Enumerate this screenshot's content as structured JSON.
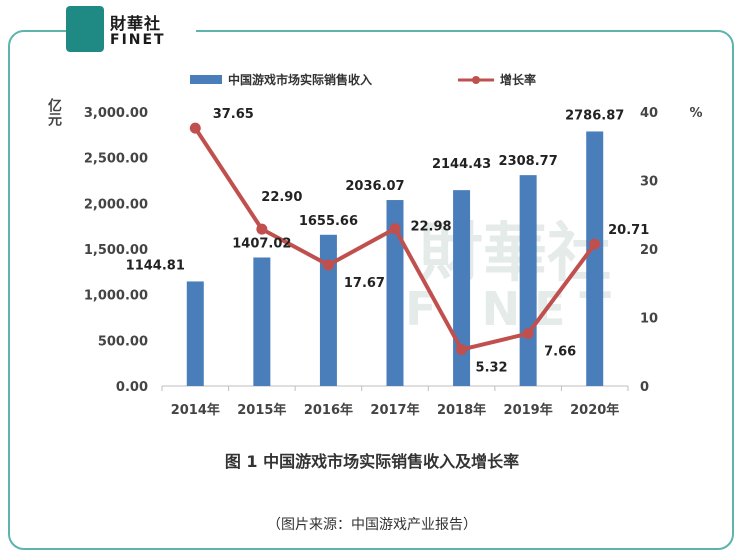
{
  "logo": {
    "text_cn": "財華社",
    "text_en": "FINET"
  },
  "caption": "图 1  中国游戏市场实际销售收入及增长率",
  "source": "（图片来源：中国游戏产业报告）",
  "watermark": {
    "text_cn": "財華社",
    "text_en": "FINET"
  },
  "colors": {
    "bar": "#4a7ebb",
    "line": "#c0504d",
    "frame": "#5fb3ad"
  },
  "chart_data": {
    "type": "bar",
    "categories": [
      "2014年",
      "2015年",
      "2016年",
      "2017年",
      "2018年",
      "2019年",
      "2020年"
    ],
    "series": [
      {
        "name": "中国游戏市场实际销售收入",
        "type": "bar",
        "axis": "left",
        "values": [
          1144.81,
          1407.02,
          1655.66,
          2036.07,
          2144.43,
          2308.77,
          2786.87
        ],
        "labels": [
          "1144.81",
          "1407.02",
          "1655.66",
          "2036.07",
          "2144.43",
          "2308.77",
          "2786.87"
        ]
      },
      {
        "name": "增长率",
        "type": "line",
        "axis": "right",
        "values": [
          37.65,
          22.9,
          17.67,
          22.98,
          5.32,
          7.66,
          20.71
        ],
        "labels": [
          "37.65",
          "22.90",
          "17.67",
          "22.98",
          "5.32",
          "7.66",
          "20.71"
        ]
      }
    ],
    "ylabel": "亿元",
    "y2label": "%",
    "ylim": [
      0,
      3000
    ],
    "y2lim": [
      0,
      40
    ],
    "yticks": [
      "0.00",
      "500.00",
      "1,000.00",
      "1,500.00",
      "2,000.00",
      "2,500.00",
      "3,000.00"
    ],
    "y2ticks": [
      "0",
      "10",
      "20",
      "30",
      "40"
    ],
    "legend": "top",
    "grid": false
  }
}
